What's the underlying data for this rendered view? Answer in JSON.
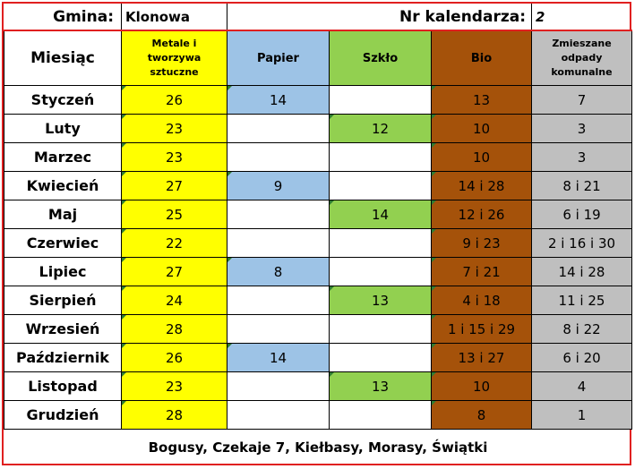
{
  "header": {
    "gmina_label": "Gmina:",
    "gmina_value": "Klonowa",
    "nr_label": "Nr kalendarza:",
    "nr_value": "2"
  },
  "columns": {
    "month": "Miesiąc",
    "metale": "Metale i tworzywa sztuczne",
    "papier": "Papier",
    "szklo": "Szkło",
    "bio": "Bio",
    "zmieszane": "Zmieszane odpady komunalne"
  },
  "colors": {
    "metale": "#ffff00",
    "papier": "#9dc3e6",
    "szklo": "#92d050",
    "bio": "#a5520a",
    "zmieszane": "#bfbfbf",
    "border": "#e02020"
  },
  "rows": [
    {
      "month": "Styczeń",
      "metale": "26",
      "papier": "14",
      "szklo": "",
      "bio": "13",
      "zmieszane": "7"
    },
    {
      "month": "Luty",
      "metale": "23",
      "papier": "",
      "szklo": "12",
      "bio": "10",
      "zmieszane": "3"
    },
    {
      "month": "Marzec",
      "metale": "23",
      "papier": "",
      "szklo": "",
      "bio": "10",
      "zmieszane": "3"
    },
    {
      "month": "Kwiecień",
      "metale": "27",
      "papier": "9",
      "szklo": "",
      "bio": "14 i 28",
      "zmieszane": "8 i 21"
    },
    {
      "month": "Maj",
      "metale": "25",
      "papier": "",
      "szklo": "14",
      "bio": "12 i 26",
      "zmieszane": "6 i 19"
    },
    {
      "month": "Czerwiec",
      "metale": "22",
      "papier": "",
      "szklo": "",
      "bio": "9 i 23",
      "zmieszane": "2 i 16 i 30"
    },
    {
      "month": "Lipiec",
      "metale": "27",
      "papier": "8",
      "szklo": "",
      "bio": "7 i 21",
      "zmieszane": "14 i 28"
    },
    {
      "month": "Sierpień",
      "metale": "24",
      "papier": "",
      "szklo": "13",
      "bio": "4 i 18",
      "zmieszane": "11 i 25"
    },
    {
      "month": "Wrzesień",
      "metale": "28",
      "papier": "",
      "szklo": "",
      "bio": "1 i 15 i 29",
      "zmieszane": "8 i 22"
    },
    {
      "month": "Październik",
      "metale": "26",
      "papier": "14",
      "szklo": "",
      "bio": "13 i 27",
      "zmieszane": "6 i 20"
    },
    {
      "month": "Listopad",
      "metale": "23",
      "papier": "",
      "szklo": "13",
      "bio": "10",
      "zmieszane": "4"
    },
    {
      "month": "Grudzień",
      "metale": "28",
      "papier": "",
      "szklo": "",
      "bio": "8",
      "zmieszane": "1"
    }
  ],
  "footer": "Bogusy, Czekaje 7, Kiełbasy, Morasy, Świątki"
}
